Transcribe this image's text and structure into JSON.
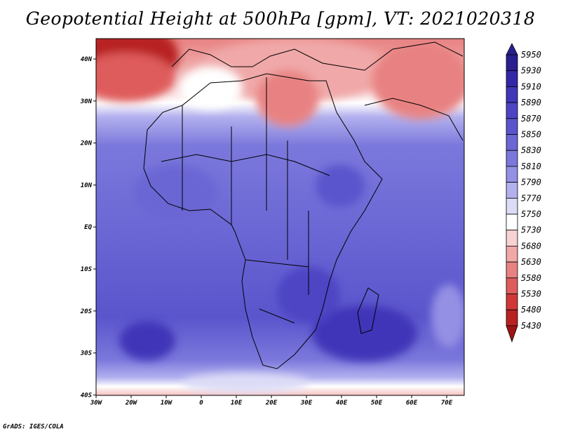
{
  "title": "Geopotential Height at 500hPa [gpm], VT: 2021020318",
  "credit": "GrADS: IGES/COLA",
  "map": {
    "lon_ticks": [
      "30W",
      "20W",
      "10W",
      "0",
      "10E",
      "20E",
      "30E",
      "40E",
      "50E",
      "60E",
      "70E"
    ],
    "lat_ticks": [
      "40N",
      "30N",
      "20N",
      "10N",
      "EQ",
      "10S",
      "20S",
      "30S",
      "40S"
    ],
    "lon_range": [
      -30,
      75
    ],
    "lat_range": [
      -40,
      45
    ]
  },
  "colorbar": {
    "levels": [
      "5950",
      "5930",
      "5910",
      "5890",
      "5870",
      "5850",
      "5830",
      "5810",
      "5790",
      "5770",
      "5750",
      "5730",
      "5680",
      "5630",
      "5580",
      "5530",
      "5480",
      "5430"
    ],
    "colors": [
      "#2a1f8f",
      "#3327a6",
      "#3f36b8",
      "#4d45c4",
      "#5a55cc",
      "#6a66d4",
      "#7b78dc",
      "#9490e4",
      "#b2b0ee",
      "#dddcf7",
      "#ffffff",
      "#f7d2d2",
      "#f0a8a8",
      "#e88282",
      "#df5c5c",
      "#d03838",
      "#b82222",
      "#a01414"
    ]
  }
}
